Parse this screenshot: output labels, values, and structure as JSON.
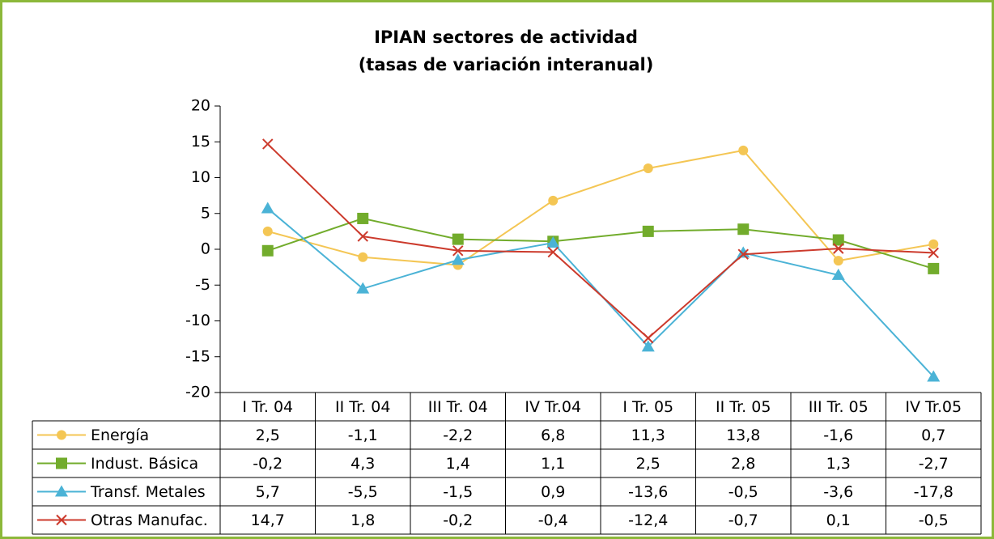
{
  "chart_data": {
    "type": "line",
    "title": [
      "IPIAN sectores de actividad",
      "(tasas de variación interanual)"
    ],
    "categories": [
      "I Tr. 04",
      "II Tr. 04",
      "III Tr. 04",
      "IV Tr.04",
      "I Tr. 05",
      "II Tr. 05",
      "III Tr. 05",
      "IV Tr.05"
    ],
    "ylim": [
      -20,
      20
    ],
    "yticks": [
      -20,
      -15,
      -10,
      -5,
      0,
      5,
      10,
      15,
      20
    ],
    "grid": false,
    "legend": "table",
    "series": [
      {
        "name": "Energía",
        "color": "#f4c654",
        "marker": "circle",
        "values": [
          2.5,
          -1.1,
          -2.2,
          6.8,
          11.3,
          13.8,
          -1.6,
          0.7
        ],
        "value_labels": [
          "2,5",
          "-1,1",
          "-2,2",
          "6,8",
          "11,3",
          "13,8",
          "-1,6",
          "0,7"
        ]
      },
      {
        "name": "Indust. Básica",
        "color": "#72ac2c",
        "marker": "square",
        "values": [
          -0.2,
          4.3,
          1.4,
          1.1,
          2.5,
          2.8,
          1.3,
          -2.7
        ],
        "value_labels": [
          "-0,2",
          "4,3",
          "1,4",
          "1,1",
          "2,5",
          "2,8",
          "1,3",
          "-2,7"
        ]
      },
      {
        "name": "Transf. Metales",
        "color": "#4bb3d6",
        "marker": "triangle",
        "values": [
          5.7,
          -5.5,
          -1.5,
          0.9,
          -13.6,
          -0.5,
          -3.6,
          -17.8
        ],
        "value_labels": [
          "5,7",
          "-5,5",
          "-1,5",
          "0,9",
          "-13,6",
          "-0,5",
          "-3,6",
          "-17,8"
        ]
      },
      {
        "name": "Otras Manufac.",
        "color": "#cc3a2c",
        "marker": "x",
        "values": [
          14.7,
          1.8,
          -0.2,
          -0.4,
          -12.4,
          -0.7,
          0.1,
          -0.5
        ],
        "value_labels": [
          "14,7",
          "1,8",
          "-0,2",
          "-0,4",
          "-12,4",
          "-0,7",
          "0,1",
          "-0,5"
        ]
      }
    ]
  }
}
